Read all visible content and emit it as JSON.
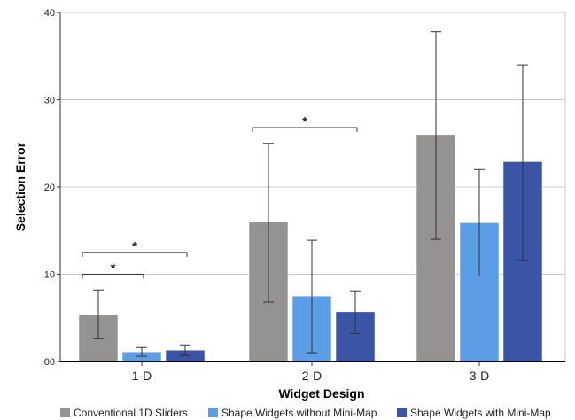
{
  "chart_data": {
    "type": "bar",
    "title": "",
    "xlabel": "Widget Design",
    "ylabel": "Selection Error",
    "categories": [
      "1-D",
      "2-D",
      "3-D"
    ],
    "ylim": [
      0,
      0.4
    ],
    "yticks": [
      0,
      0.1,
      0.2,
      0.3,
      0.4
    ],
    "ytick_labels": [
      ".00",
      ".10",
      ".20",
      ".30",
      ".40"
    ],
    "grid": true,
    "legend_position": "bottom",
    "series": [
      {
        "name": "Conventional 1D Sliders",
        "color": "#959391",
        "values": [
          0.054,
          0.16,
          0.26
        ],
        "error_low": [
          0.026,
          0.068,
          0.14
        ],
        "error_high": [
          0.082,
          0.25,
          0.378
        ]
      },
      {
        "name": "Shape Widgets without Mini-Map",
        "color": "#5b9ee6",
        "values": [
          0.011,
          0.075,
          0.159
        ],
        "error_low": [
          0.006,
          0.01,
          0.098
        ],
        "error_high": [
          0.016,
          0.139,
          0.22
        ]
      },
      {
        "name": "Shape Widgets with Mini-Map",
        "color": "#3a55a6",
        "values": [
          0.013,
          0.057,
          0.229
        ],
        "error_low": [
          0.007,
          0.032,
          0.116
        ],
        "error_high": [
          0.019,
          0.081,
          0.34
        ]
      }
    ],
    "annotations": [
      {
        "text": "*",
        "category": 0,
        "from_series": 0,
        "to_series": 1,
        "level": 0.1
      },
      {
        "text": "*",
        "category": 0,
        "from_series": 0,
        "to_series": 2,
        "level": 0.125
      },
      {
        "text": "*",
        "category": 1,
        "from_series": 0,
        "to_series": 2,
        "level": 0.268
      }
    ]
  }
}
